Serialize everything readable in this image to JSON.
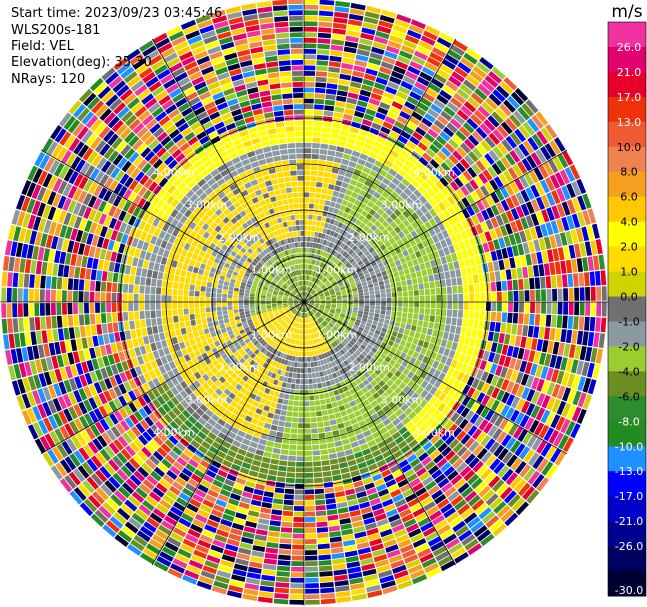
{
  "info": {
    "start_time": "Start time: 2023/09/23 03:45:46",
    "instrument": "WLS200s-181",
    "field": "Field: VEL",
    "elevation": "Elevation(deg): 35.30",
    "nrays": "NRays: 120"
  },
  "colorbar": {
    "unit": "m/s",
    "ticks": [
      "26.0",
      "21.0",
      "17.0",
      "13.0",
      "10.0",
      "8.0",
      "6.0",
      "4.0",
      "2.0",
      "1.0",
      "0.0",
      "-1.0",
      "-2.0",
      "-4.0",
      "-6.0",
      "-8.0",
      "-10.0",
      "-13.0",
      "-17.0",
      "-21.0",
      "-26.0",
      "-30.0"
    ],
    "colors": [
      "#f032a0",
      "#e0006e",
      "#e6002a",
      "#f0320a",
      "#f05a32",
      "#f08250",
      "#f4a01e",
      "#ffc800",
      "#ffff00",
      "#ffdc00",
      "#d2d200",
      "#707070",
      "#8a9aa0",
      "#9acd32",
      "#6b8e23",
      "#2e8b2e",
      "#228b22",
      "#1e90ff",
      "#0000ff",
      "#0000c8",
      "#000090",
      "#000060",
      "#000030"
    ]
  },
  "chart_data": {
    "type": "heatmap",
    "projection": "polar PPI",
    "field": "VEL",
    "units": "m/s",
    "n_rays": 120,
    "vmin": -30.0,
    "vmax": 26.0,
    "range_ring_labels": [
      "1.00km",
      "2.00km",
      "3.00km",
      "4.00km"
    ],
    "range_ring_km": [
      1,
      2,
      3,
      4
    ],
    "max_range_km": 6.6,
    "azimuth_spokes_deg": [
      0,
      30,
      60,
      90,
      120,
      150,
      180,
      210,
      240,
      270,
      300,
      330
    ],
    "regions": [
      {
        "description": "inner ring, weak negative",
        "range_km": [
          0.3,
          1.3
        ],
        "values": [
          -1.0,
          -2.0
        ]
      },
      {
        "description": "south-center blob, weak positive",
        "range_km": [
          0.3,
          1.2
        ],
        "values": [
          1.0,
          2.0
        ]
      },
      {
        "description": "mid ring west/north, positive",
        "range_km": [
          1.3,
          3.0
        ],
        "values": [
          1.0,
          2.0
        ]
      },
      {
        "description": "mid ring east/south, negative",
        "range_km": [
          1.3,
          3.3
        ],
        "values": [
          -1.0,
          -2.0
        ]
      },
      {
        "description": "outer band north, positive",
        "range_km": [
          3.2,
          4.0
        ],
        "values": [
          2.0,
          4.0
        ]
      },
      {
        "description": "outer noise",
        "range_km": [
          4.0,
          6.6
        ],
        "values": "mixed -30.0 to 26.0"
      }
    ]
  }
}
